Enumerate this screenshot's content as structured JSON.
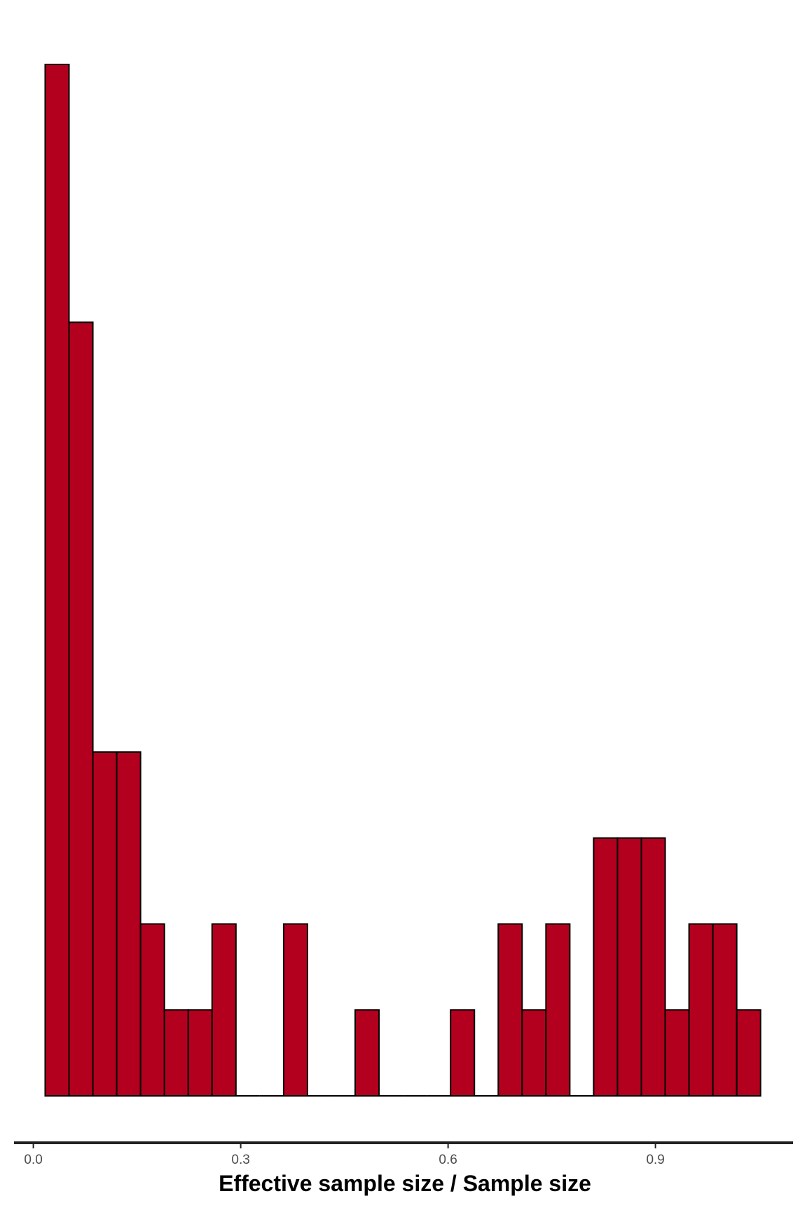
{
  "chart_data": {
    "type": "bar",
    "subtype": "histogram",
    "title": "",
    "xlabel": "Effective sample size / Sample size",
    "ylabel": "",
    "bin_width": 0.0345,
    "bin_start": 0.0171,
    "bins": [
      {
        "x0": 0.0171,
        "x1": 0.0516,
        "count": 12
      },
      {
        "x0": 0.0516,
        "x1": 0.0861,
        "count": 9
      },
      {
        "x0": 0.0861,
        "x1": 0.1206,
        "count": 4
      },
      {
        "x0": 0.1206,
        "x1": 0.1551,
        "count": 4
      },
      {
        "x0": 0.1551,
        "x1": 0.1896,
        "count": 2
      },
      {
        "x0": 0.1896,
        "x1": 0.2241,
        "count": 1
      },
      {
        "x0": 0.2241,
        "x1": 0.2586,
        "count": 1
      },
      {
        "x0": 0.2586,
        "x1": 0.2931,
        "count": 2
      },
      {
        "x0": 0.2931,
        "x1": 0.3276,
        "count": 0
      },
      {
        "x0": 0.3276,
        "x1": 0.3621,
        "count": 0
      },
      {
        "x0": 0.3621,
        "x1": 0.3966,
        "count": 2
      },
      {
        "x0": 0.3966,
        "x1": 0.4311,
        "count": 0
      },
      {
        "x0": 0.4311,
        "x1": 0.4656,
        "count": 0
      },
      {
        "x0": 0.4656,
        "x1": 0.5001,
        "count": 1
      },
      {
        "x0": 0.5001,
        "x1": 0.5346,
        "count": 0
      },
      {
        "x0": 0.5346,
        "x1": 0.5691,
        "count": 0
      },
      {
        "x0": 0.5691,
        "x1": 0.6036,
        "count": 0
      },
      {
        "x0": 0.6036,
        "x1": 0.6381,
        "count": 1
      },
      {
        "x0": 0.6381,
        "x1": 0.6726,
        "count": 0
      },
      {
        "x0": 0.6726,
        "x1": 0.7071,
        "count": 2
      },
      {
        "x0": 0.7071,
        "x1": 0.7416,
        "count": 1
      },
      {
        "x0": 0.7416,
        "x1": 0.7761,
        "count": 2
      },
      {
        "x0": 0.7761,
        "x1": 0.8106,
        "count": 0
      },
      {
        "x0": 0.8106,
        "x1": 0.8451,
        "count": 3
      },
      {
        "x0": 0.8451,
        "x1": 0.8796,
        "count": 3
      },
      {
        "x0": 0.8796,
        "x1": 0.9141,
        "count": 3
      },
      {
        "x0": 0.9141,
        "x1": 0.9486,
        "count": 1
      },
      {
        "x0": 0.9486,
        "x1": 0.9831,
        "count": 2
      },
      {
        "x0": 0.9831,
        "x1": 1.0176,
        "count": 2
      },
      {
        "x0": 1.0176,
        "x1": 1.0521,
        "count": 1
      }
    ],
    "xlim": [
      -0.03,
      1.1
    ],
    "ylim": [
      0,
      12.7
    ],
    "x_ticks": [
      {
        "value": 0.0,
        "label": "0.0"
      },
      {
        "value": 0.3,
        "label": "0.3"
      },
      {
        "value": 0.6,
        "label": "0.6"
      },
      {
        "value": 0.9,
        "label": "0.9"
      }
    ],
    "y_axis_shown": false,
    "grid": false,
    "legend": "none",
    "colors": {
      "bar_fill": "#b3001e",
      "bar_outline": "#000000",
      "axis_line": "#222222",
      "tick_label": "#4d4d4d",
      "axis_title": "#000000"
    }
  }
}
